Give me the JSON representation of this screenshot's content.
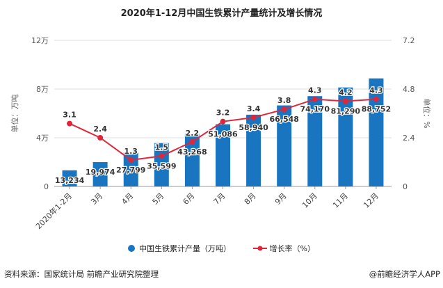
{
  "title": "2020年1-12月中国生铁累计产量统计及增长情况",
  "chart_data": {
    "type": "bar+line",
    "title": "2020年1-12月中国生铁累计产量统计及增长情况",
    "categories": [
      "2020年1-2月",
      "3月",
      "4月",
      "5月",
      "6月",
      "7月",
      "8月",
      "9月",
      "10月",
      "11月",
      "12月"
    ],
    "series": [
      {
        "name": "中国生铁累计产量（万吨）",
        "type": "bar",
        "axis": "left",
        "color": "#1a75c1",
        "values": [
          13234,
          19974,
          27799,
          35599,
          43268,
          51086,
          58940,
          66548,
          74170,
          81290,
          88752
        ],
        "labels": [
          "13,234",
          "19,974",
          "27,799",
          "35,599",
          "43,268",
          "51,086",
          "58,940",
          "66,548",
          "74,170",
          "81,290",
          "88,752"
        ]
      },
      {
        "name": "增长率（%）",
        "type": "line",
        "axis": "right",
        "color": "#e0263a",
        "values": [
          3.1,
          2.4,
          1.3,
          1.5,
          2.2,
          3.2,
          3.4,
          3.8,
          4.3,
          4.2,
          4.3
        ],
        "labels": [
          "3.1",
          "2.4",
          "1.3",
          "1.5",
          "2.2",
          "3.2",
          "3.4",
          "3.8",
          "4.3",
          "4.2",
          "4.3"
        ]
      }
    ],
    "left_axis": {
      "label": "单位：万吨",
      "ylim": [
        0,
        120000
      ],
      "ticks": [
        0,
        40000,
        80000,
        120000
      ],
      "tick_labels": [
        "0",
        "4万",
        "8万",
        "12万"
      ]
    },
    "right_axis": {
      "label": "单位：%",
      "ylim": [
        0,
        7.2
      ],
      "ticks": [
        0,
        2.4,
        4.8,
        7.2
      ],
      "tick_labels": [
        "0",
        "2.4",
        "4.8",
        "7.2"
      ]
    },
    "grid": true,
    "legend": "bottom"
  },
  "legend": {
    "bar": "中国生铁累计产量（万吨）",
    "line": "增长率（%）"
  },
  "footer": {
    "source": "资料来源：国家统计局 前瞻产业研究院整理",
    "brand": "@前瞻经济学人APP"
  }
}
